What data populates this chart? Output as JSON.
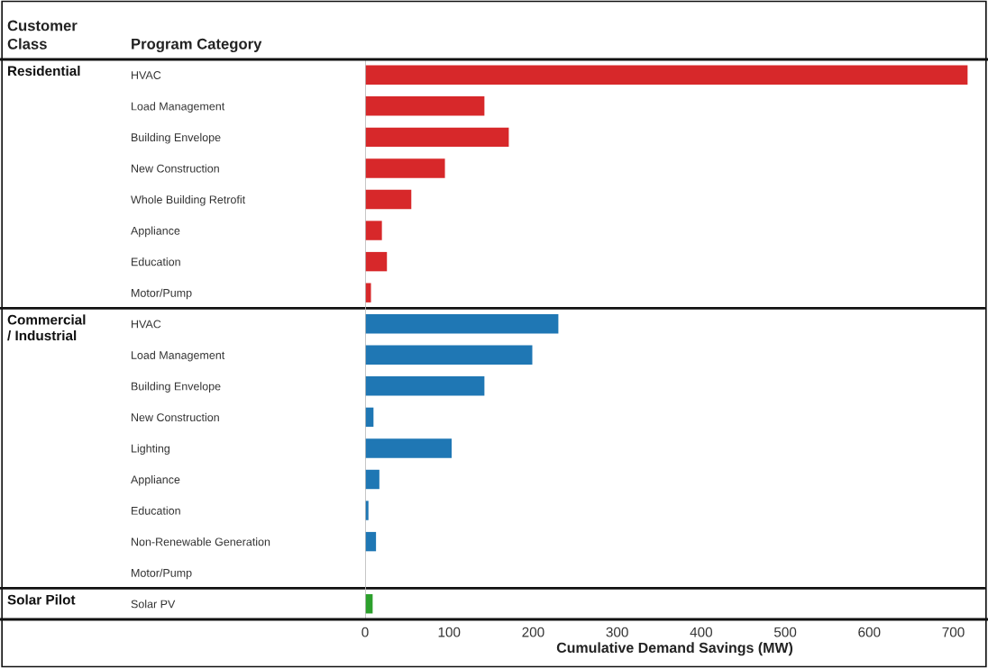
{
  "chart_data": {
    "type": "bar",
    "orientation": "horizontal",
    "xlabel": "Cumulative Demand Savings (MW)",
    "ylabel": "Program Category",
    "annotations": [
      "Customer Class",
      "Residential",
      "Commercial / Industrial",
      "Solar Pilot"
    ],
    "categories": [
      "HVAC",
      "Load Management",
      "Building Envelope",
      "New Construction",
      "Whole Building Retrofit",
      "Appliance",
      "Education",
      "Motor/Pump",
      "HVAC",
      "Load Management",
      "Building Envelope",
      "New Construction",
      "Lighting",
      "Appliance",
      "Education",
      "Non-Renewable Generation",
      "Motor/Pump",
      "Solar PV"
    ],
    "series": [
      {
        "color": "#d7282a",
        "values": [
          717,
          142,
          171,
          95,
          55,
          20,
          26,
          7,
          null,
          null,
          null,
          null,
          null,
          null,
          null,
          null,
          null,
          null
        ]
      },
      {
        "color": "#1f77b4",
        "values": [
          null,
          null,
          null,
          null,
          null,
          null,
          null,
          null,
          230,
          199,
          142,
          10,
          103,
          17,
          4,
          13,
          0,
          null
        ]
      },
      {
        "color": "#2ca02c",
        "values": [
          null,
          null,
          null,
          null,
          null,
          null,
          null,
          null,
          null,
          null,
          null,
          null,
          null,
          null,
          null,
          null,
          null,
          9
        ]
      }
    ],
    "xlim": [
      0,
      737
    ],
    "xticks": [
      0,
      100,
      200,
      300,
      400,
      500,
      600,
      700
    ],
    "grid": false
  }
}
